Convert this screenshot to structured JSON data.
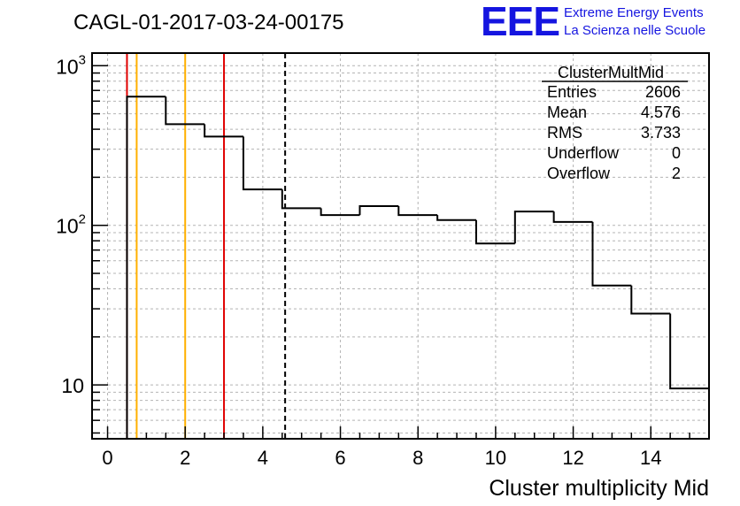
{
  "title": "CAGL-01-2017-03-24-00175",
  "logo": {
    "mark": "EEE",
    "line1": "Extreme Energy Events",
    "line2": "La Scienza nelle Scuole",
    "color": "#1515e0"
  },
  "stats_box": {
    "name": "ClusterMultMid",
    "rows": [
      {
        "label": "Entries",
        "value": "2606"
      },
      {
        "label": "Mean",
        "value": "4.576"
      },
      {
        "label": "RMS",
        "value": "3.733"
      },
      {
        "label": "Underflow",
        "value": "0"
      },
      {
        "label": "Overflow",
        "value": "2"
      }
    ]
  },
  "chart_data": {
    "type": "bar",
    "histogram": true,
    "title": "CAGL-01-2017-03-24-00175",
    "xlabel": "Cluster multiplicity Mid",
    "ylabel": "",
    "xlim": [
      -0.4,
      15.5
    ],
    "ylim": [
      4.6,
      1200
    ],
    "ylog": true,
    "grid": true,
    "bin_edges": [
      0.5,
      1.5,
      2.5,
      3.5,
      4.5,
      5.5,
      6.5,
      7.5,
      8.5,
      9.5,
      10.5,
      11.5,
      12.5,
      13.5,
      14.5,
      15.5
    ],
    "values": [
      640,
      430,
      360,
      168,
      128,
      116,
      132,
      116,
      108,
      77,
      122,
      105,
      42,
      28,
      9.5
    ],
    "x_ticks": [
      "0",
      "2",
      "4",
      "6",
      "8",
      "10",
      "12",
      "14"
    ],
    "x_tick_values": [
      0,
      2,
      4,
      6,
      8,
      10,
      12,
      14
    ],
    "y_ticks": [
      {
        "value": 10,
        "base": "10",
        "exp": ""
      },
      {
        "value": 100,
        "base": "10",
        "exp": "2"
      },
      {
        "value": 1000,
        "base": "10",
        "exp": "3"
      }
    ],
    "vertical_lines": [
      {
        "x": 0.5,
        "color": "#e00000",
        "style": "solid"
      },
      {
        "x": 0.75,
        "color": "#ffb000",
        "style": "solid"
      },
      {
        "x": 2.0,
        "color": "#ffb000",
        "style": "solid"
      },
      {
        "x": 3.0,
        "color": "#e00000",
        "style": "solid"
      },
      {
        "x": 4.576,
        "color": "#000000",
        "style": "dashed"
      }
    ],
    "line_color": "#000000",
    "grid_color": "#b4b4b4"
  }
}
